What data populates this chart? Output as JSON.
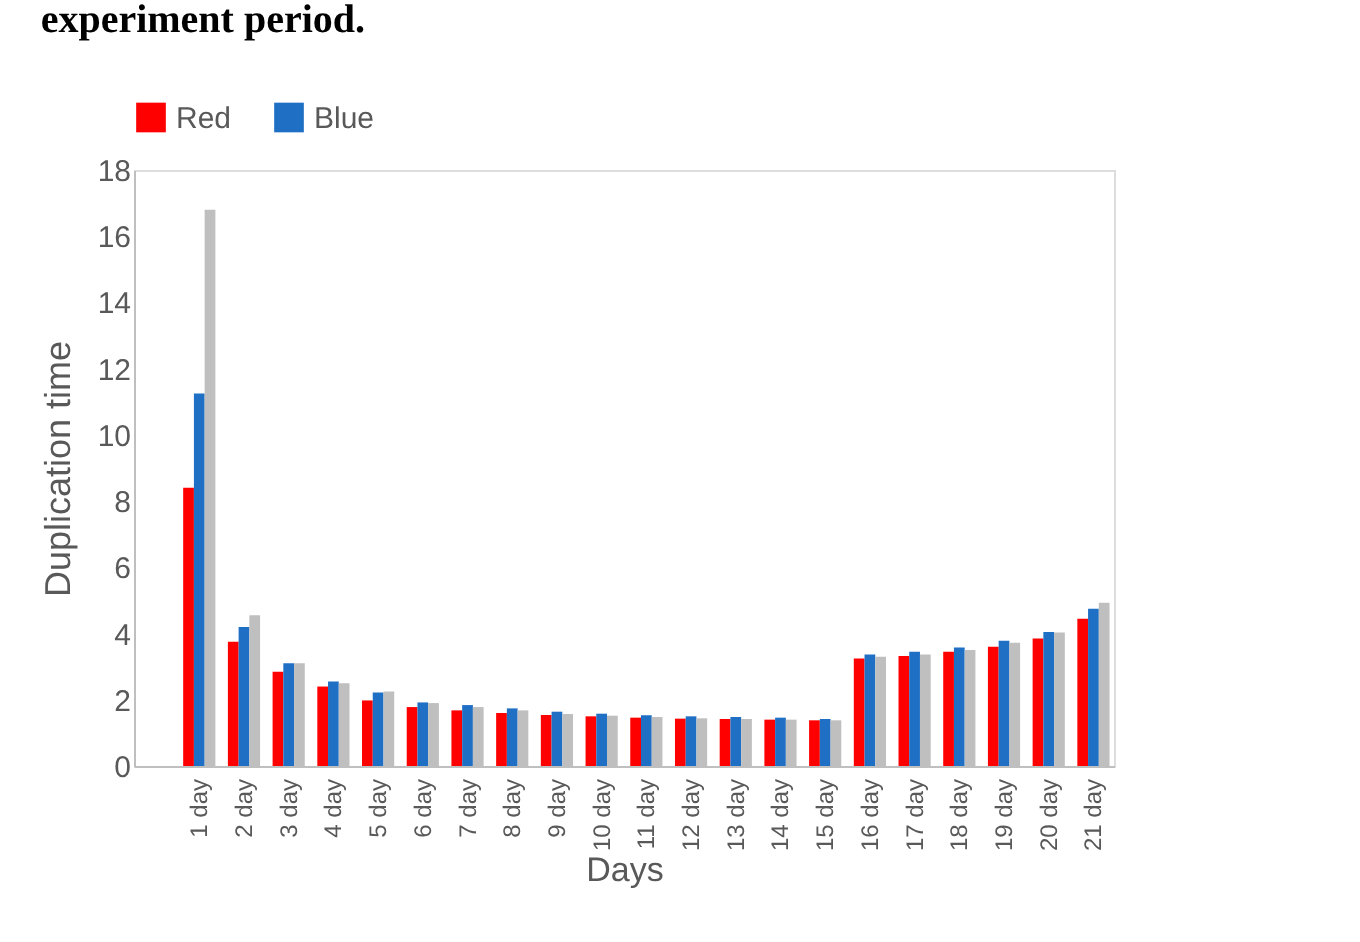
{
  "chart_data": {
    "type": "bar",
    "title": "experiment period.",
    "xlabel": "Days",
    "ylabel": "Duplication time",
    "categories": [
      null,
      "1 day",
      "2 day",
      "3 day",
      "4 day",
      "5 day",
      "6 day",
      "7 day",
      "8 day",
      "9 day",
      "10 day",
      "11 day",
      "12 day",
      "13 day",
      "14 day",
      "15 day",
      "16 day",
      "17 day",
      "18 day",
      "19 day",
      "20 day",
      "21 day"
    ],
    "series": [
      {
        "name": "Red",
        "color": "#ff0000",
        "values": [
          null,
          8.4,
          3.75,
          2.85,
          2.4,
          1.98,
          1.78,
          1.68,
          1.6,
          1.54,
          1.5,
          1.46,
          1.43,
          1.42,
          1.4,
          1.38,
          3.25,
          3.32,
          3.45,
          3.6,
          3.85,
          4.45
        ]
      },
      {
        "name": "Blue",
        "color": "#1f6fc5",
        "values": [
          null,
          11.25,
          4.2,
          3.1,
          2.55,
          2.22,
          1.92,
          1.84,
          1.74,
          1.64,
          1.58,
          1.53,
          1.5,
          1.48,
          1.46,
          1.42,
          3.37,
          3.45,
          3.58,
          3.78,
          4.05,
          4.75
        ]
      },
      {
        "color": "#bfbfbf",
        "values": [
          null,
          16.8,
          4.55,
          3.1,
          2.5,
          2.25,
          1.9,
          1.78,
          1.68,
          1.57,
          1.52,
          1.48,
          1.44,
          1.42,
          1.4,
          1.38,
          3.3,
          3.37,
          3.5,
          3.72,
          4.03,
          4.93
        ]
      }
    ],
    "ylim": [
      0,
      18
    ],
    "yticks": [
      0,
      2,
      4,
      6,
      8,
      10,
      12,
      14,
      16,
      18
    ],
    "grid": false,
    "legend": "top"
  }
}
